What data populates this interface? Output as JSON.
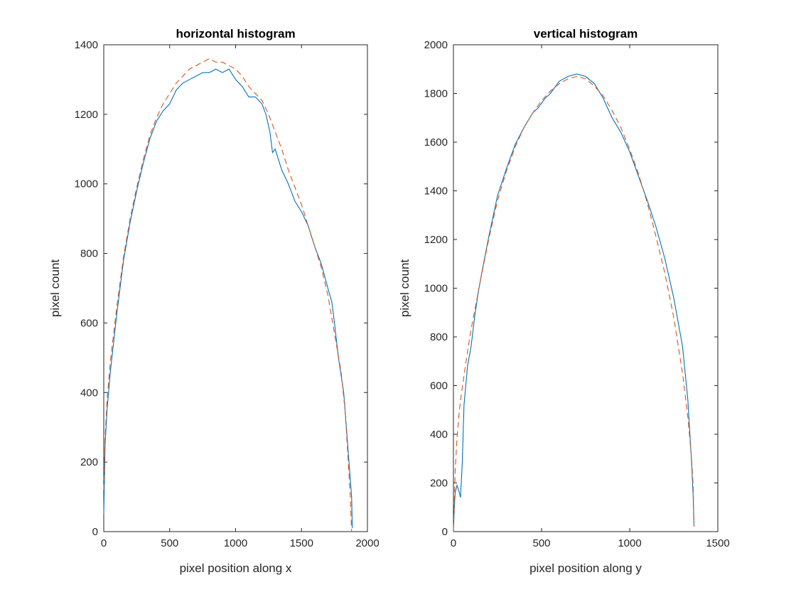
{
  "chart_data": [
    {
      "type": "line",
      "title": "horizontal histogram",
      "xlabel": "pixel position along x",
      "ylabel": "pixel count",
      "xlim": [
        0,
        2000
      ],
      "ylim": [
        0,
        1400
      ],
      "xticks": [
        0,
        500,
        1000,
        1500,
        2000
      ],
      "yticks": [
        0,
        200,
        400,
        600,
        800,
        1000,
        1200,
        1400
      ],
      "grid": false,
      "series": [
        {
          "color": "#0072BD",
          "style": "solid",
          "x": [
            0,
            10,
            25,
            50,
            100,
            150,
            200,
            250,
            300,
            350,
            400,
            450,
            500,
            550,
            600,
            650,
            700,
            750,
            800,
            850,
            900,
            950,
            1000,
            1050,
            1100,
            1150,
            1200,
            1230,
            1260,
            1280,
            1300,
            1350,
            1400,
            1450,
            1500,
            1550,
            1600,
            1650,
            1700,
            1730,
            1750,
            1780,
            1800,
            1820,
            1840,
            1860,
            1880,
            1885
          ],
          "y": [
            50,
            250,
            350,
            460,
            630,
            780,
            890,
            980,
            1060,
            1130,
            1180,
            1210,
            1230,
            1270,
            1290,
            1300,
            1310,
            1320,
            1320,
            1330,
            1320,
            1330,
            1300,
            1280,
            1250,
            1250,
            1230,
            1200,
            1150,
            1090,
            1100,
            1040,
            1000,
            950,
            920,
            880,
            820,
            770,
            700,
            660,
            600,
            500,
            450,
            400,
            300,
            200,
            100,
            10
          ]
        },
        {
          "color": "#D95319",
          "style": "dashed",
          "x": [
            0,
            10,
            25,
            50,
            100,
            150,
            200,
            250,
            300,
            350,
            400,
            450,
            500,
            550,
            600,
            650,
            700,
            750,
            800,
            850,
            900,
            950,
            1000,
            1050,
            1100,
            1150,
            1200,
            1250,
            1300,
            1350,
            1400,
            1450,
            1500,
            1550,
            1600,
            1650,
            1700,
            1750,
            1800,
            1830,
            1850,
            1870,
            1880
          ],
          "y": [
            120,
            270,
            380,
            490,
            650,
            790,
            900,
            990,
            1070,
            1140,
            1190,
            1230,
            1260,
            1290,
            1310,
            1330,
            1340,
            1350,
            1360,
            1350,
            1350,
            1340,
            1330,
            1310,
            1280,
            1260,
            1240,
            1200,
            1150,
            1100,
            1040,
            990,
            940,
            880,
            820,
            760,
            680,
            570,
            460,
            350,
            230,
            100,
            0
          ]
        }
      ]
    },
    {
      "type": "line",
      "title": "vertical histogram",
      "xlabel": "pixel position along y",
      "ylabel": "pixel count",
      "xlim": [
        0,
        1500
      ],
      "ylim": [
        0,
        2000
      ],
      "xticks": [
        0,
        500,
        1000,
        1500
      ],
      "yticks": [
        0,
        200,
        400,
        600,
        800,
        1000,
        1200,
        1400,
        1600,
        1800,
        2000
      ],
      "grid": false,
      "series": [
        {
          "color": "#0072BD",
          "style": "solid",
          "x": [
            0,
            5,
            10,
            20,
            30,
            40,
            50,
            60,
            80,
            100,
            120,
            140,
            160,
            200,
            250,
            300,
            350,
            400,
            450,
            480,
            500,
            520,
            550,
            600,
            650,
            700,
            750,
            800,
            850,
            900,
            950,
            1000,
            1050,
            1100,
            1150,
            1200,
            1250,
            1300,
            1330,
            1350,
            1360,
            1365
          ],
          "y": [
            0,
            100,
            160,
            190,
            170,
            140,
            280,
            520,
            680,
            760,
            880,
            980,
            1060,
            1210,
            1380,
            1490,
            1590,
            1660,
            1720,
            1740,
            1760,
            1780,
            1800,
            1850,
            1870,
            1880,
            1870,
            1840,
            1780,
            1700,
            1640,
            1560,
            1460,
            1360,
            1250,
            1120,
            960,
            760,
            540,
            300,
            150,
            20
          ]
        },
        {
          "color": "#D95319",
          "style": "dashed",
          "x": [
            0,
            5,
            10,
            20,
            30,
            40,
            60,
            80,
            100,
            150,
            200,
            250,
            300,
            350,
            400,
            450,
            500,
            550,
            600,
            650,
            700,
            750,
            800,
            850,
            900,
            950,
            1000,
            1050,
            1100,
            1150,
            1200,
            1250,
            1300,
            1330,
            1350,
            1360,
            1365
          ],
          "y": [
            10,
            120,
            250,
            380,
            470,
            540,
            640,
            740,
            830,
            1020,
            1200,
            1360,
            1480,
            1580,
            1660,
            1720,
            1770,
            1810,
            1840,
            1860,
            1870,
            1860,
            1830,
            1790,
            1730,
            1660,
            1570,
            1470,
            1350,
            1210,
            1060,
            880,
            650,
            470,
            310,
            190,
            20
          ]
        }
      ]
    }
  ]
}
